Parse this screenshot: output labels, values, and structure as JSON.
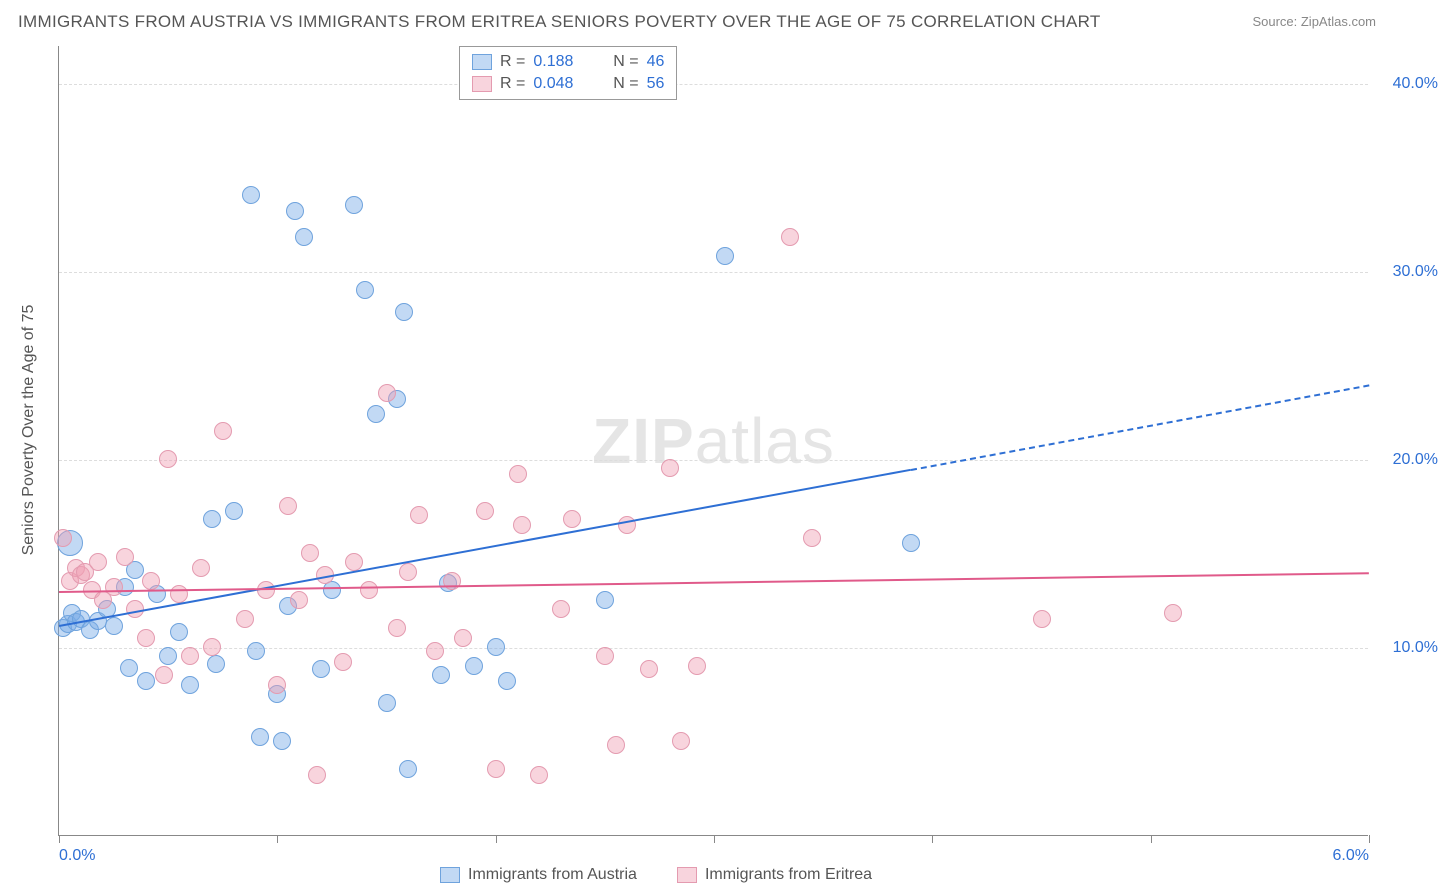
{
  "title": "IMMIGRANTS FROM AUSTRIA VS IMMIGRANTS FROM ERITREA SENIORS POVERTY OVER THE AGE OF 75 CORRELATION CHART",
  "source": "Source: ZipAtlas.com",
  "watermark_bold": "ZIP",
  "watermark_light": "atlas",
  "y_axis_label": "Seniors Poverty Over the Age of 75",
  "xlim": [
    0,
    6
  ],
  "ylim": [
    0,
    42
  ],
  "y_ticks": [
    10,
    20,
    30,
    40
  ],
  "y_tick_labels": [
    "10.0%",
    "20.0%",
    "30.0%",
    "40.0%"
  ],
  "x_ticks": [
    0,
    1,
    2,
    3,
    4,
    5,
    6
  ],
  "x_tick_labels": [
    "0.0%",
    "",
    "",
    "",
    "",
    "",
    "6.0%"
  ],
  "colors": {
    "austria_fill": "rgba(120,170,230,0.45)",
    "austria_stroke": "#6fa3dd",
    "eritrea_fill": "rgba(240,160,180,0.45)",
    "eritrea_stroke": "#e49bb0",
    "austria_line": "#2e6fd4",
    "eritrea_line": "#e05a8a",
    "grid": "#dddddd",
    "text": "#555555",
    "tick_text": "#2e6fd4"
  },
  "series": [
    {
      "name": "Immigrants from Austria",
      "key": "austria",
      "R": "0.188",
      "N": "46",
      "marker_size": 18,
      "trend": {
        "x0": 0,
        "y0": 11.2,
        "x1": 3.9,
        "y1": 19.5,
        "ext_x": 6.0,
        "ext_y": 24.0
      },
      "points": [
        {
          "x": 0.02,
          "y": 11.0
        },
        {
          "x": 0.04,
          "y": 11.2
        },
        {
          "x": 0.06,
          "y": 11.8
        },
        {
          "x": 0.08,
          "y": 11.3
        },
        {
          "x": 0.1,
          "y": 11.5
        },
        {
          "x": 0.14,
          "y": 10.9
        },
        {
          "x": 0.18,
          "y": 11.4
        },
        {
          "x": 0.22,
          "y": 12.0
        },
        {
          "x": 0.25,
          "y": 11.1
        },
        {
          "x": 0.3,
          "y": 13.2
        },
        {
          "x": 0.32,
          "y": 8.9
        },
        {
          "x": 0.35,
          "y": 14.1
        },
        {
          "x": 0.4,
          "y": 8.2
        },
        {
          "x": 0.45,
          "y": 12.8
        },
        {
          "x": 0.5,
          "y": 9.5
        },
        {
          "x": 0.55,
          "y": 10.8
        },
        {
          "x": 0.6,
          "y": 8.0
        },
        {
          "x": 0.7,
          "y": 16.8
        },
        {
          "x": 0.72,
          "y": 9.1
        },
        {
          "x": 0.8,
          "y": 17.2
        },
        {
          "x": 0.88,
          "y": 34.0
        },
        {
          "x": 0.9,
          "y": 9.8
        },
        {
          "x": 0.92,
          "y": 5.2
        },
        {
          "x": 1.0,
          "y": 7.5
        },
        {
          "x": 1.02,
          "y": 5.0
        },
        {
          "x": 1.05,
          "y": 12.2
        },
        {
          "x": 1.08,
          "y": 33.2
        },
        {
          "x": 1.12,
          "y": 31.8
        },
        {
          "x": 1.2,
          "y": 8.8
        },
        {
          "x": 1.25,
          "y": 13.0
        },
        {
          "x": 1.35,
          "y": 33.5
        },
        {
          "x": 1.4,
          "y": 29.0
        },
        {
          "x": 1.45,
          "y": 22.4
        },
        {
          "x": 1.5,
          "y": 7.0
        },
        {
          "x": 1.55,
          "y": 23.2
        },
        {
          "x": 1.58,
          "y": 27.8
        },
        {
          "x": 1.6,
          "y": 3.5
        },
        {
          "x": 1.75,
          "y": 8.5
        },
        {
          "x": 1.78,
          "y": 13.4
        },
        {
          "x": 1.9,
          "y": 9.0
        },
        {
          "x": 2.0,
          "y": 10.0
        },
        {
          "x": 2.05,
          "y": 8.2
        },
        {
          "x": 2.5,
          "y": 12.5
        },
        {
          "x": 3.05,
          "y": 30.8
        },
        {
          "x": 3.9,
          "y": 15.5
        },
        {
          "x": 0.05,
          "y": 15.5,
          "size": 26
        }
      ]
    },
    {
      "name": "Immigrants from Eritrea",
      "key": "eritrea",
      "R": "0.048",
      "N": "56",
      "marker_size": 18,
      "trend": {
        "x0": 0,
        "y0": 13.0,
        "x1": 6.0,
        "y1": 14.0
      },
      "points": [
        {
          "x": 0.02,
          "y": 15.8
        },
        {
          "x": 0.05,
          "y": 13.5
        },
        {
          "x": 0.08,
          "y": 14.2
        },
        {
          "x": 0.1,
          "y": 13.8
        },
        {
          "x": 0.12,
          "y": 14.0
        },
        {
          "x": 0.15,
          "y": 13.0
        },
        {
          "x": 0.18,
          "y": 14.5
        },
        {
          "x": 0.2,
          "y": 12.5
        },
        {
          "x": 0.25,
          "y": 13.2
        },
        {
          "x": 0.3,
          "y": 14.8
        },
        {
          "x": 0.35,
          "y": 12.0
        },
        {
          "x": 0.4,
          "y": 10.5
        },
        {
          "x": 0.42,
          "y": 13.5
        },
        {
          "x": 0.5,
          "y": 20.0
        },
        {
          "x": 0.55,
          "y": 12.8
        },
        {
          "x": 0.6,
          "y": 9.5
        },
        {
          "x": 0.65,
          "y": 14.2
        },
        {
          "x": 0.7,
          "y": 10.0
        },
        {
          "x": 0.75,
          "y": 21.5
        },
        {
          "x": 0.85,
          "y": 11.5
        },
        {
          "x": 0.95,
          "y": 13.0
        },
        {
          "x": 1.0,
          "y": 8.0
        },
        {
          "x": 1.05,
          "y": 17.5
        },
        {
          "x": 1.1,
          "y": 12.5
        },
        {
          "x": 1.15,
          "y": 15.0
        },
        {
          "x": 1.18,
          "y": 3.2
        },
        {
          "x": 1.22,
          "y": 13.8
        },
        {
          "x": 1.3,
          "y": 9.2
        },
        {
          "x": 1.35,
          "y": 14.5
        },
        {
          "x": 1.42,
          "y": 13.0
        },
        {
          "x": 1.5,
          "y": 23.5
        },
        {
          "x": 1.55,
          "y": 11.0
        },
        {
          "x": 1.65,
          "y": 17.0
        },
        {
          "x": 1.72,
          "y": 9.8
        },
        {
          "x": 1.8,
          "y": 13.5
        },
        {
          "x": 1.85,
          "y": 10.5
        },
        {
          "x": 1.95,
          "y": 17.2
        },
        {
          "x": 2.0,
          "y": 3.5
        },
        {
          "x": 2.1,
          "y": 19.2
        },
        {
          "x": 2.12,
          "y": 16.5
        },
        {
          "x": 2.2,
          "y": 3.2
        },
        {
          "x": 2.3,
          "y": 12.0
        },
        {
          "x": 2.35,
          "y": 16.8
        },
        {
          "x": 2.5,
          "y": 9.5
        },
        {
          "x": 2.55,
          "y": 4.8
        },
        {
          "x": 2.6,
          "y": 16.5
        },
        {
          "x": 2.7,
          "y": 8.8
        },
        {
          "x": 2.8,
          "y": 19.5
        },
        {
          "x": 2.85,
          "y": 5.0
        },
        {
          "x": 2.92,
          "y": 9.0
        },
        {
          "x": 3.35,
          "y": 31.8
        },
        {
          "x": 3.45,
          "y": 15.8
        },
        {
          "x": 4.5,
          "y": 11.5
        },
        {
          "x": 5.1,
          "y": 11.8
        },
        {
          "x": 1.6,
          "y": 14.0
        },
        {
          "x": 0.48,
          "y": 8.5
        }
      ]
    }
  ],
  "legend_labels": {
    "R": "R =",
    "N": "N ="
  }
}
